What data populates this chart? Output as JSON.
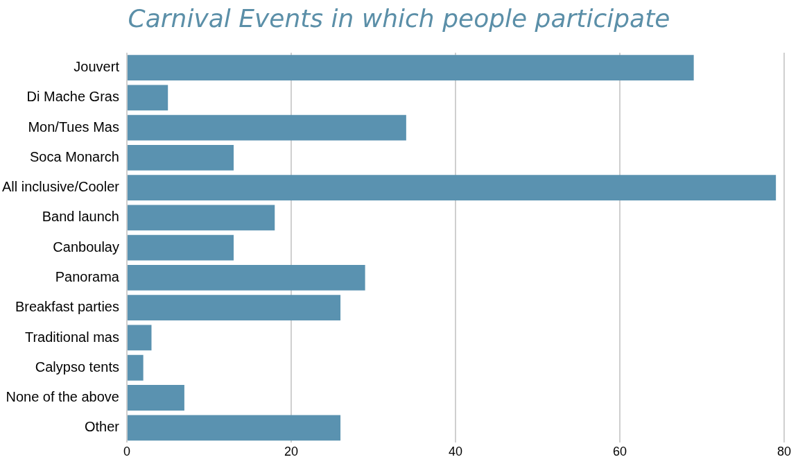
{
  "chart_data": {
    "type": "bar",
    "orientation": "horizontal",
    "title": "Carnival Events in which people participate",
    "categories": [
      "Jouvert",
      "Di Mache Gras",
      "Mon/Tues Mas",
      "Soca Monarch",
      "All inclusive/Cooler",
      "Band launch",
      "Canboulay",
      "Panorama",
      "Breakfast parties",
      "Traditional mas",
      "Calypso tents",
      "None of the above",
      "Other"
    ],
    "values": [
      69,
      5,
      34,
      13,
      79,
      18,
      13,
      29,
      26,
      3,
      2,
      7,
      26
    ],
    "color": "#5a92b0",
    "xlim": [
      0,
      80
    ],
    "xticks": [
      0,
      20,
      40,
      60,
      80
    ],
    "grid": "x",
    "legend": false
  }
}
